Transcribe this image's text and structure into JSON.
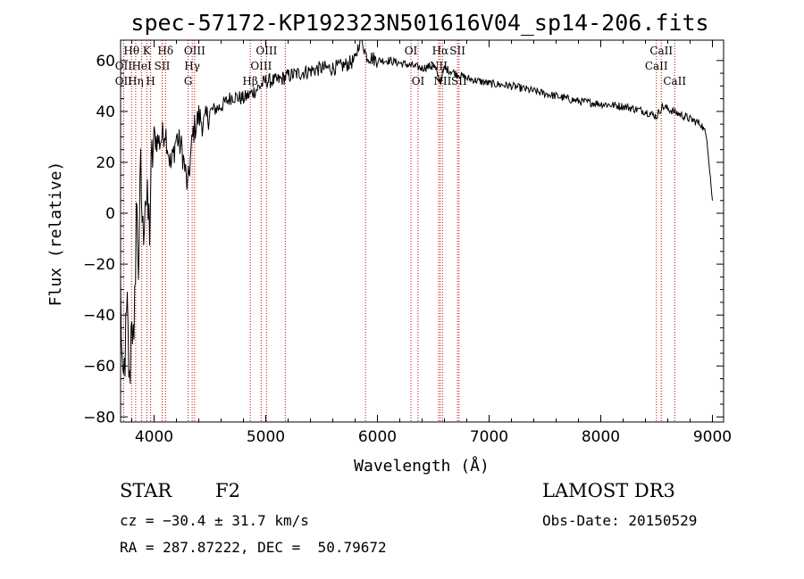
{
  "chart_data": {
    "type": "line",
    "title": "spec-57172-KP192323N501616V04_sp14-206.fits",
    "xlabel": "Wavelength (Å)",
    "ylabel": "Flux (relative)",
    "xlim": [
      3700,
      9100
    ],
    "ylim": [
      -82,
      68
    ],
    "xticks": [
      4000,
      5000,
      6000,
      7000,
      8000,
      9000
    ],
    "yticks": [
      -80,
      -60,
      -40,
      -20,
      0,
      20,
      40,
      60
    ],
    "series": [
      {
        "name": "flux",
        "x": [
          3700,
          3720,
          3740,
          3760,
          3780,
          3800,
          3820,
          3840,
          3860,
          3880,
          3900,
          3920,
          3940,
          3960,
          3980,
          4000,
          4050,
          4100,
          4150,
          4200,
          4250,
          4300,
          4350,
          4400,
          4450,
          4500,
          4600,
          4700,
          4800,
          4900,
          5000,
          5100,
          5200,
          5300,
          5400,
          5500,
          5600,
          5700,
          5800,
          5850,
          5900,
          6000,
          6100,
          6200,
          6300,
          6400,
          6500,
          6563,
          6600,
          6700,
          6800,
          6900,
          7000,
          7200,
          7400,
          7600,
          7800,
          8000,
          8200,
          8400,
          8500,
          8550,
          8600,
          8700,
          8800,
          8900,
          8950,
          9000
        ],
        "y": [
          -30,
          -75,
          -55,
          -40,
          -70,
          -35,
          -60,
          5,
          -20,
          15,
          -10,
          10,
          0,
          -5,
          20,
          30,
          28,
          33,
          18,
          30,
          25,
          10,
          32,
          38,
          35,
          40,
          42,
          46,
          45,
          48,
          52,
          52,
          54,
          55,
          56,
          57,
          57,
          58,
          60,
          70,
          62,
          60,
          60,
          59,
          58,
          57,
          58,
          52,
          57,
          55,
          53,
          52,
          51,
          50,
          48,
          46,
          44,
          43,
          42,
          40,
          38,
          42,
          41,
          39,
          37,
          35,
          30,
          5
        ]
      }
    ],
    "spectral_lines": [
      {
        "label": "Hθ",
        "wavelength": 3798,
        "row": 1
      },
      {
        "label": "OII",
        "wavelength": 3727,
        "row": 2
      },
      {
        "label": "OII",
        "wavelength": 3727,
        "row": 3
      },
      {
        "label": "HeI",
        "wavelength": 3889,
        "row": 2
      },
      {
        "label": "Hη",
        "wavelength": 3835,
        "row": 3
      },
      {
        "label": "K",
        "wavelength": 3934,
        "row": 1
      },
      {
        "label": "H",
        "wavelength": 3969,
        "row": 3
      },
      {
        "label": "Hδ",
        "wavelength": 4102,
        "row": 1
      },
      {
        "label": "SII",
        "wavelength": 4072,
        "row": 2
      },
      {
        "label": "OIII",
        "wavelength": 4363,
        "row": 1
      },
      {
        "label": "Hγ",
        "wavelength": 4341,
        "row": 2
      },
      {
        "label": "G",
        "wavelength": 4305,
        "row": 3
      },
      {
        "label": "OIII",
        "wavelength": 5007,
        "row": 1
      },
      {
        "label": "OIII",
        "wavelength": 4959,
        "row": 2
      },
      {
        "label": "Hβ",
        "wavelength": 4861,
        "row": 3
      },
      {
        "label": "OI",
        "wavelength": 6300,
        "row": 1
      },
      {
        "label": "OI",
        "wavelength": 6364,
        "row": 3
      },
      {
        "label": "Hα",
        "wavelength": 6563,
        "row": 1
      },
      {
        "label": "SII",
        "wavelength": 6717,
        "row": 1
      },
      {
        "label": "NII",
        "wavelength": 6548,
        "row": 2
      },
      {
        "label": "SII",
        "wavelength": 6731,
        "row": 3
      },
      {
        "label": "NII",
        "wavelength": 6583,
        "row": 3
      },
      {
        "label": "CaII",
        "wavelength": 8542,
        "row": 1
      },
      {
        "label": "CaII",
        "wavelength": 8498,
        "row": 2
      },
      {
        "label": "CaII",
        "wavelength": 8662,
        "row": 3
      }
    ],
    "extra_line_marks": [
      5175,
      5893
    ]
  },
  "info": {
    "object_class": "STAR",
    "subclass": "F2",
    "survey": "LAMOST DR3",
    "redshift": "cz = −30.4 ± 31.7 km/s",
    "obs_date": "Obs-Date: 20150529",
    "coords": "RA = 287.87222, DEC =  50.79672"
  },
  "colors": {
    "line_marker": "#cc0000",
    "spectrum": "#000000"
  }
}
